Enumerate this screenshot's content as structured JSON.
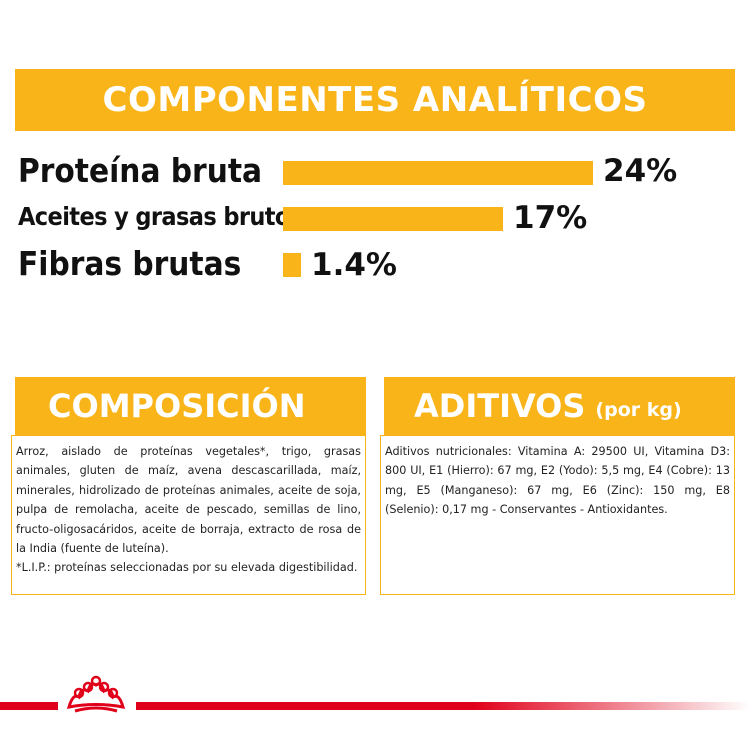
{
  "analytics": {
    "title": "COMPONENTES ANALÍTICOS",
    "rows": [
      {
        "label": "Proteína bruta",
        "value": "24%",
        "percent": 24
      },
      {
        "label": "Aceites y grasas brutos",
        "value": "17%",
        "percent": 17
      },
      {
        "label": "Fibras brutas",
        "value": "1.4%",
        "percent": 1.4
      }
    ]
  },
  "composition": {
    "title": "COMPOSICIÓN",
    "paragraphs": [
      "Arroz, aislado de proteínas vegetales*, trigo, grasas animales, gluten de maíz, avena descascarillada, maíz, minerales, hidrolizado de proteínas animales, aceite de soja, pulpa de remolacha, aceite de pescado, semillas de lino, fructo-oligosacáridos, aceite de borraja, extracto de rosa de la India (fuente de luteína).",
      "*L.I.P.: proteínas seleccionadas por su elevada digestibilidad."
    ]
  },
  "additives": {
    "title": "ADITIVOS",
    "unit": "(por kg)",
    "text": "Aditivos nutricionales: Vitamina A: 29500 UI, Vitamina D3: 800 UI, E1 (Hierro): 67 mg, E2 (Yodo): 5,5 mg, E4 (Cobre): 13 mg, E5 (Manganeso): 67 mg, E6 (Zinc): 150 mg, E8 (Selenio): 0,17 mg - Conservantes - Antioxidantes."
  },
  "colors": {
    "accent": "#f8b418",
    "brand_red": "#e1001a",
    "text": "#111111"
  },
  "icons": {
    "logo": "royal-canin-crown-icon"
  }
}
